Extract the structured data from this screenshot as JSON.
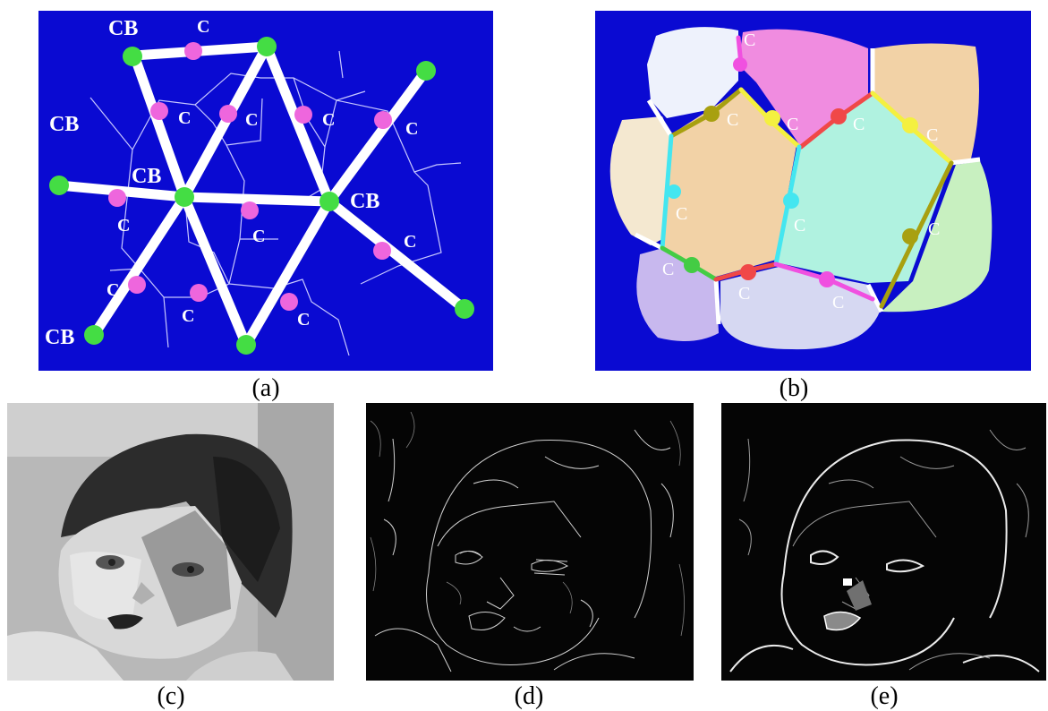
{
  "captions": {
    "a": "(a)",
    "b": "(b)",
    "c": "(c)",
    "d": "(d)",
    "e": "(e)"
  },
  "labels": {
    "cb": "CB",
    "c": "C"
  },
  "colors": {
    "panel_background": "#0a0ad2",
    "node_green": "#44dd44",
    "node_pink": "#ee66dd",
    "edge_white": "#ffffff",
    "region_lavender": "#c8b8ee",
    "region_blue_grey": "#d6d8f2",
    "region_peach": "#f2d2a6",
    "region_pink": "#f08ce0",
    "region_aqua": "#b0f2e0",
    "region_light_green": "#c8f0c0",
    "region_cream": "#f4e8d0",
    "region_pale_blue": "#eef2fc",
    "boundary_cyan": "#44e6f0",
    "boundary_olive": "#a8a010",
    "boundary_red": "#f04848",
    "boundary_yellow": "#f4f040",
    "boundary_magenta": "#f050e0",
    "boundary_green": "#44cc44"
  },
  "photo_descriptions": {
    "c": "grayscale-segmented-portrait-of-baby",
    "d": "edge-map-of-portrait",
    "e": "weighted-edge-map-of-portrait"
  }
}
